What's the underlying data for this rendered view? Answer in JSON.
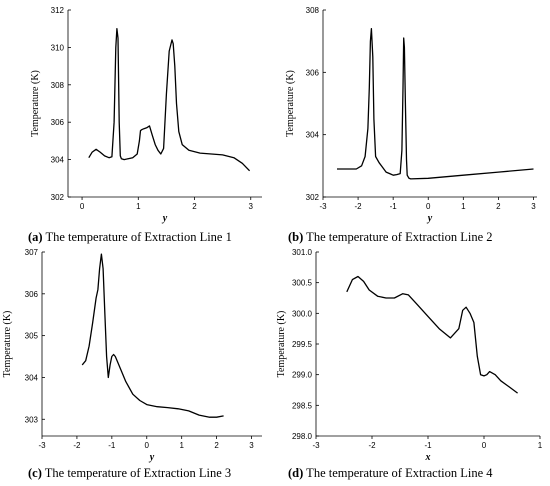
{
  "chart_data": [
    {
      "type": "line",
      "panel": "a",
      "caption_tag": "(a)",
      "caption_text": " The temperature of Extraction Line 1",
      "xlabel": "y",
      "ylabel": "Temperature (K)",
      "xlim": [
        -0.25,
        3.2
      ],
      "ylim": [
        302,
        312
      ],
      "xticks": [
        0,
        1,
        2,
        3
      ],
      "xtick_labels": [
        "0",
        "1",
        "2",
        "3"
      ],
      "yticks": [
        302,
        304,
        306,
        308,
        310,
        312
      ],
      "ytick_labels": [
        "302",
        "304",
        "306",
        "308",
        "310",
        "312"
      ],
      "series": [
        {
          "x": [
            0.12,
            0.18,
            0.25,
            0.32,
            0.4,
            0.48,
            0.53,
            0.57,
            0.6,
            0.62,
            0.64,
            0.66,
            0.68,
            0.7,
            0.75,
            0.82,
            0.9,
            0.98,
            1.02,
            1.04,
            1.06,
            1.1,
            1.15,
            1.2,
            1.25,
            1.3,
            1.35,
            1.4,
            1.45,
            1.5,
            1.55,
            1.6,
            1.62,
            1.65,
            1.68,
            1.72,
            1.78,
            1.9,
            2.1,
            2.3,
            2.5,
            2.7,
            2.85,
            2.98
          ],
          "y": [
            304.1,
            304.4,
            304.55,
            304.4,
            304.2,
            304.1,
            304.15,
            306.0,
            310.0,
            311.0,
            310.5,
            306.0,
            304.2,
            304.05,
            304.0,
            304.05,
            304.1,
            304.3,
            305.0,
            305.55,
            305.6,
            305.65,
            305.7,
            305.8,
            305.3,
            304.8,
            304.5,
            304.3,
            304.6,
            307.5,
            309.8,
            310.4,
            310.2,
            309.0,
            307.0,
            305.5,
            304.8,
            304.5,
            304.35,
            304.3,
            304.25,
            304.1,
            303.8,
            303.4
          ]
        }
      ]
    },
    {
      "type": "line",
      "panel": "b",
      "caption_tag": "(b)",
      "caption_text": " The temperature of Extraction Line 2",
      "xlabel": "y",
      "ylabel": "Temperature (K)",
      "xlim": [
        -3,
        3.1
      ],
      "ylim": [
        302,
        308
      ],
      "xticks": [
        -3,
        -2,
        -1,
        0,
        1,
        2,
        3
      ],
      "xtick_labels": [
        "-3",
        "-2",
        "-1",
        "0",
        "1",
        "2",
        "3"
      ],
      "yticks": [
        302,
        304,
        306,
        308
      ],
      "ytick_labels": [
        "302",
        "304",
        "306",
        "308"
      ],
      "series": [
        {
          "x": [
            -2.6,
            -2.3,
            -2.05,
            -1.9,
            -1.8,
            -1.72,
            -1.68,
            -1.65,
            -1.62,
            -1.58,
            -1.55,
            -1.5,
            -1.4,
            -1.3,
            -1.2,
            -1.1,
            -1.0,
            -0.9,
            -0.8,
            -0.75,
            -0.72,
            -0.7,
            -0.68,
            -0.65,
            -0.62,
            -0.6,
            -0.55,
            -0.5,
            0.0,
            1.0,
            2.0,
            3.0
          ],
          "y": [
            302.9,
            302.9,
            302.9,
            303.0,
            303.3,
            304.2,
            305.5,
            307.0,
            307.4,
            306.5,
            304.5,
            303.3,
            303.1,
            302.95,
            302.8,
            302.75,
            302.7,
            302.72,
            302.75,
            303.5,
            305.5,
            307.1,
            306.8,
            305.0,
            303.2,
            302.7,
            302.6,
            302.58,
            302.6,
            302.7,
            302.8,
            302.9
          ]
        }
      ]
    },
    {
      "type": "line",
      "panel": "c",
      "caption_tag": "(c)",
      "caption_text": " The temperature of Extraction Line 3",
      "xlabel": "y",
      "ylabel": "Temperature (K)",
      "xlim": [
        -3,
        3.3
      ],
      "ylim": [
        302.6,
        307
      ],
      "xticks": [
        -3,
        -2,
        -1,
        0,
        1,
        2,
        3
      ],
      "xtick_labels": [
        "-3",
        "-2",
        "-1",
        "0",
        "1",
        "2",
        "3"
      ],
      "yticks": [
        303,
        304,
        305,
        306,
        307
      ],
      "ytick_labels": [
        "303",
        "304",
        "305",
        "306",
        "307"
      ],
      "series": [
        {
          "x": [
            -1.85,
            -1.75,
            -1.65,
            -1.55,
            -1.45,
            -1.4,
            -1.35,
            -1.3,
            -1.25,
            -1.2,
            -1.15,
            -1.1,
            -1.05,
            -1.0,
            -0.95,
            -0.9,
            -0.85,
            -0.75,
            -0.6,
            -0.4,
            -0.2,
            0.0,
            0.3,
            0.6,
            0.9,
            1.2,
            1.5,
            1.8,
            2.0,
            2.2
          ],
          "y": [
            304.3,
            304.4,
            304.75,
            305.3,
            305.9,
            306.1,
            306.6,
            306.95,
            306.6,
            305.5,
            304.5,
            304.0,
            304.3,
            304.5,
            304.55,
            304.5,
            304.4,
            304.2,
            303.9,
            303.6,
            303.45,
            303.35,
            303.3,
            303.28,
            303.25,
            303.2,
            303.1,
            303.05,
            303.05,
            303.08
          ]
        }
      ]
    },
    {
      "type": "line",
      "panel": "d",
      "caption_tag": "(d)",
      "caption_text": " The temperature of Extraction Line 4",
      "xlabel": "x",
      "ylabel": "Temperature (K)",
      "xlim": [
        -3,
        1
      ],
      "ylim": [
        298.0,
        301.0
      ],
      "xticks": [
        -3,
        -2,
        -1,
        0,
        1
      ],
      "xtick_labels": [
        "-3",
        "-2",
        "-1",
        "0",
        "1"
      ],
      "yticks": [
        298.0,
        298.5,
        299.0,
        299.5,
        300.0,
        300.5,
        301.0
      ],
      "ytick_labels": [
        "298.0",
        "298.5",
        "299.0",
        "299.5",
        "300.0",
        "300.5",
        "301.0"
      ],
      "series": [
        {
          "x": [
            -2.45,
            -2.35,
            -2.25,
            -2.15,
            -2.05,
            -1.9,
            -1.75,
            -1.6,
            -1.45,
            -1.35,
            -1.2,
            -1.0,
            -0.8,
            -0.6,
            -0.45,
            -0.38,
            -0.32,
            -0.25,
            -0.18,
            -0.12,
            -0.06,
            0.0,
            0.05,
            0.1,
            0.2,
            0.3,
            0.45,
            0.6
          ],
          "y": [
            300.35,
            300.55,
            300.6,
            300.52,
            300.38,
            300.28,
            300.25,
            300.25,
            300.32,
            300.3,
            300.15,
            299.95,
            299.75,
            299.6,
            299.75,
            300.05,
            300.1,
            300.0,
            299.85,
            299.3,
            299.0,
            298.98,
            299.0,
            299.05,
            299.0,
            298.9,
            298.8,
            298.7
          ]
        }
      ]
    }
  ]
}
